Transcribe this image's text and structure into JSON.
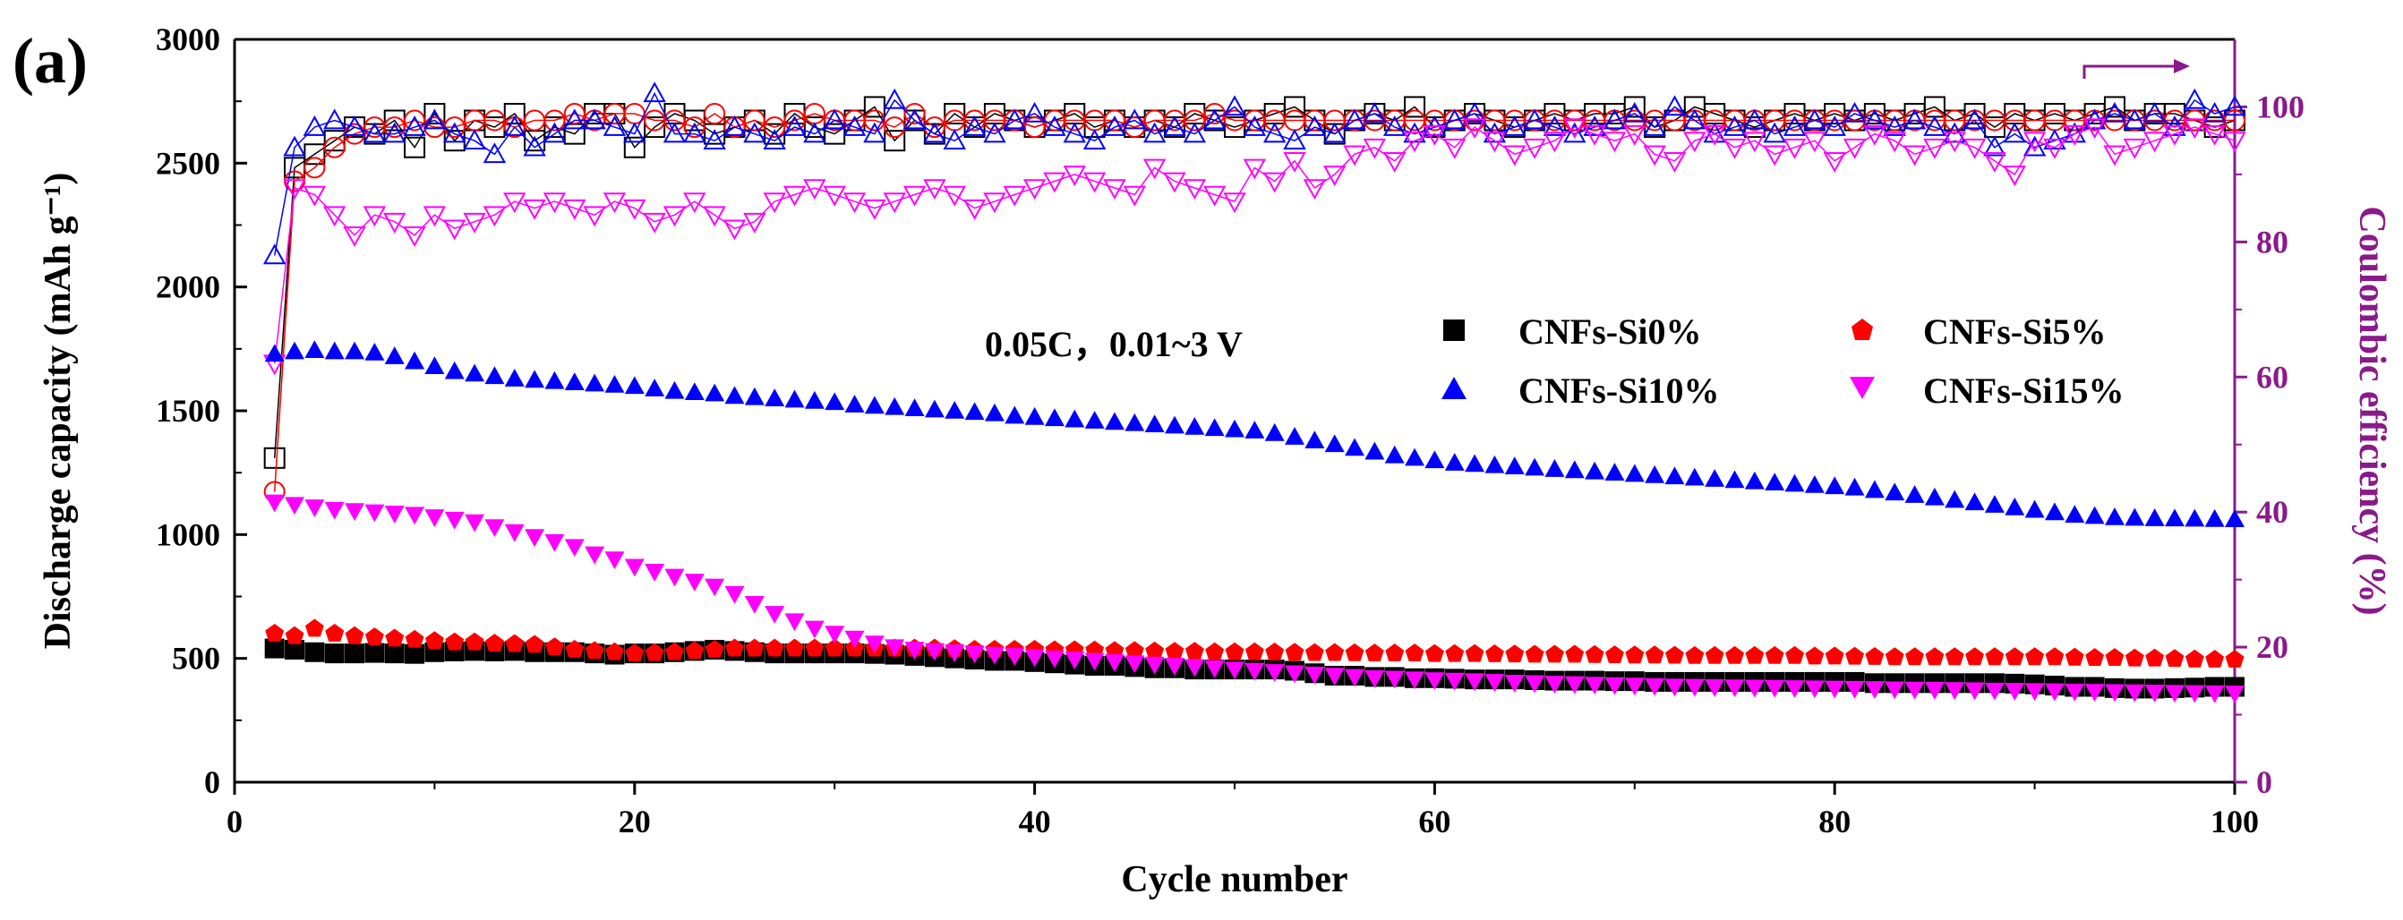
{
  "panel_label": "(a)",
  "annotation": "0.05C，0.01~3 V",
  "colors": {
    "axis": "#000000",
    "right_axis": "#8a1a8a",
    "CNFs-Si0%": "#000000",
    "CNFs-Si5%": "#ff0000",
    "CNFs-Si10%": "#0000ff",
    "CNFs-Si15%": "#ff00ff"
  },
  "chart_data": {
    "type": "scatter",
    "xlabel": "Cycle number",
    "ylabel": "Discharge capacity (mAh g⁻¹)",
    "y2label": "Coulombic efficiency (%)",
    "xlim": [
      0,
      100
    ],
    "ylim": [
      0,
      3000
    ],
    "y2lim": [
      0,
      110
    ],
    "xticks": [
      0,
      20,
      40,
      60,
      80,
      100
    ],
    "yticks": [
      0,
      500,
      1000,
      1500,
      2000,
      2500,
      3000
    ],
    "y2ticks": [
      0,
      20,
      40,
      60,
      80,
      100
    ],
    "grid": false,
    "legend_position": "upper-middle",
    "x": [
      2,
      3,
      4,
      5,
      6,
      7,
      8,
      9,
      10,
      11,
      12,
      13,
      14,
      15,
      16,
      17,
      18,
      19,
      20,
      21,
      22,
      23,
      24,
      25,
      26,
      27,
      28,
      29,
      30,
      31,
      32,
      33,
      34,
      35,
      36,
      37,
      38,
      39,
      40,
      41,
      42,
      43,
      44,
      45,
      46,
      47,
      48,
      49,
      50,
      51,
      52,
      53,
      54,
      55,
      56,
      57,
      58,
      59,
      60,
      61,
      62,
      63,
      64,
      65,
      66,
      67,
      68,
      69,
      70,
      71,
      72,
      73,
      74,
      75,
      76,
      77,
      78,
      79,
      80,
      81,
      82,
      83,
      84,
      85,
      86,
      87,
      88,
      89,
      90,
      91,
      92,
      93,
      94,
      95,
      96,
      97,
      98,
      99,
      100
    ],
    "series": [
      {
        "name": "CNFs-Si0%",
        "marker": "square",
        "axis": "left",
        "values": [
          540,
          535,
          525,
          520,
          520,
          522,
          520,
          518,
          525,
          528,
          530,
          528,
          530,
          525,
          525,
          525,
          520,
          515,
          520,
          520,
          525,
          530,
          535,
          530,
          525,
          520,
          520,
          520,
          520,
          520,
          518,
          515,
          510,
          505,
          500,
          495,
          490,
          490,
          485,
          480,
          475,
          470,
          470,
          465,
          460,
          460,
          455,
          455,
          455,
          455,
          455,
          450,
          440,
          430,
          430,
          425,
          425,
          420,
          420,
          418,
          415,
          415,
          415,
          412,
          410,
          410,
          410,
          408,
          408,
          405,
          405,
          405,
          405,
          405,
          405,
          405,
          405,
          405,
          405,
          405,
          400,
          400,
          400,
          400,
          400,
          400,
          400,
          398,
          395,
          390,
          385,
          385,
          380,
          378,
          378,
          380,
          382,
          385,
          385
        ]
      },
      {
        "name": "CNFs-Si5%",
        "marker": "pentagon",
        "axis": "left",
        "values": [
          600,
          590,
          620,
          600,
          590,
          585,
          580,
          575,
          570,
          565,
          565,
          560,
          558,
          555,
          545,
          535,
          530,
          525,
          520,
          522,
          525,
          530,
          535,
          540,
          540,
          540,
          540,
          540,
          540,
          540,
          540,
          540,
          540,
          540,
          538,
          535,
          535,
          535,
          535,
          533,
          533,
          532,
          530,
          530,
          528,
          527,
          527,
          525,
          525,
          525,
          524,
          523,
          522,
          522,
          521,
          520,
          520,
          520,
          518,
          518,
          518,
          517,
          516,
          515,
          515,
          515,
          514,
          513,
          512,
          512,
          511,
          510,
          510,
          510,
          510,
          510,
          510,
          508,
          508,
          507,
          506,
          505,
          505,
          505,
          505,
          505,
          505,
          505,
          505,
          505,
          503,
          502,
          502,
          500,
          500,
          498,
          496,
          495,
          495
        ]
      },
      {
        "name": "CNFs-Si10%",
        "marker": "triangle-up",
        "axis": "left",
        "values": [
          1730,
          1740,
          1745,
          1740,
          1740,
          1735,
          1720,
          1700,
          1680,
          1660,
          1650,
          1640,
          1630,
          1625,
          1620,
          1615,
          1610,
          1605,
          1600,
          1590,
          1580,
          1575,
          1570,
          1560,
          1555,
          1550,
          1545,
          1540,
          1535,
          1525,
          1520,
          1515,
          1510,
          1505,
          1500,
          1495,
          1490,
          1480,
          1475,
          1470,
          1465,
          1460,
          1455,
          1450,
          1445,
          1440,
          1435,
          1430,
          1425,
          1420,
          1410,
          1395,
          1380,
          1365,
          1350,
          1335,
          1320,
          1310,
          1300,
          1290,
          1285,
          1280,
          1275,
          1270,
          1265,
          1260,
          1255,
          1250,
          1245,
          1240,
          1235,
          1230,
          1225,
          1220,
          1215,
          1210,
          1205,
          1200,
          1195,
          1190,
          1180,
          1170,
          1160,
          1150,
          1140,
          1130,
          1120,
          1110,
          1100,
          1090,
          1080,
          1075,
          1070,
          1068,
          1066,
          1065,
          1064,
          1063,
          1062
        ]
      },
      {
        "name": "CNFs-Si15%",
        "marker": "triangle-down",
        "axis": "left",
        "values": [
          1130,
          1120,
          1110,
          1100,
          1095,
          1090,
          1085,
          1080,
          1070,
          1060,
          1050,
          1030,
          1010,
          990,
          970,
          950,
          920,
          900,
          870,
          850,
          830,
          810,
          790,
          760,
          720,
          680,
          650,
          620,
          600,
          580,
          560,
          545,
          535,
          530,
          525,
          520,
          515,
          510,
          505,
          500,
          495,
          490,
          485,
          480,
          475,
          470,
          465,
          460,
          455,
          450,
          445,
          440,
          435,
          430,
          425,
          420,
          418,
          415,
          412,
          410,
          408,
          405,
          402,
          400,
          398,
          396,
          394,
          392,
          390,
          388,
          386,
          385,
          384,
          383,
          382,
          381,
          380,
          379,
          378,
          377,
          376,
          375,
          374,
          373,
          372,
          371,
          370,
          369,
          368,
          367,
          366,
          365,
          364,
          363,
          362,
          361,
          360,
          359,
          358
        ]
      },
      {
        "name": "CNFs-Si0% CE",
        "marker": "open-square",
        "axis": "right",
        "values": [
          48,
          91,
          93,
          95,
          97,
          96,
          98,
          94,
          99,
          95,
          98,
          97,
          99,
          95,
          97,
          96,
          99,
          99,
          94,
          97,
          99,
          98,
          96,
          97,
          98,
          96,
          99,
          97,
          96,
          98,
          100,
          95,
          98,
          96,
          99,
          97,
          99,
          98,
          97,
          98,
          99,
          97,
          98,
          97,
          98,
          97,
          99,
          98,
          97,
          98,
          99,
          100,
          98,
          96,
          98,
          99,
          98,
          100,
          97,
          98,
          99,
          98,
          97,
          98,
          99,
          98,
          99,
          99,
          100,
          97,
          98,
          100,
          99,
          98,
          97,
          98,
          99,
          98,
          99,
          98,
          99,
          98,
          99,
          100,
          98,
          99,
          97,
          99,
          98,
          99,
          98,
          99,
          100,
          98,
          99,
          99,
          98,
          97,
          98
        ]
      },
      {
        "name": "CNFs-Si5% CE",
        "marker": "open-circle",
        "axis": "right",
        "values": [
          43,
          89,
          91,
          94,
          96,
          97,
          97,
          98,
          97,
          97,
          98,
          98,
          97,
          98,
          98,
          99,
          98,
          99,
          99,
          98,
          98,
          97,
          99,
          97,
          98,
          97,
          98,
          99,
          98,
          98,
          98,
          97,
          99,
          97,
          98,
          98,
          98,
          98,
          97,
          98,
          98,
          98,
          98,
          97,
          98,
          98,
          98,
          99,
          98,
          98,
          98,
          98,
          98,
          98,
          98,
          98,
          98,
          98,
          98,
          98,
          98,
          98,
          98,
          98,
          98,
          98,
          98,
          98,
          98,
          98,
          98,
          98,
          98,
          98,
          98,
          98,
          98,
          98,
          98,
          98,
          98,
          98,
          98,
          98,
          98,
          98,
          98,
          98,
          98,
          98,
          98,
          98,
          98,
          98,
          98,
          98,
          98,
          98,
          98
        ]
      },
      {
        "name": "CNFs-Si10% CE",
        "marker": "open-triangle-up",
        "axis": "right",
        "values": [
          78,
          94,
          97,
          98,
          97,
          96,
          96,
          97,
          98,
          96,
          95,
          93,
          97,
          94,
          96,
          98,
          98,
          97,
          96,
          102,
          96,
          96,
          95,
          97,
          96,
          95,
          97,
          96,
          98,
          97,
          96,
          101,
          98,
          96,
          95,
          97,
          96,
          98,
          99,
          97,
          96,
          95,
          97,
          98,
          96,
          97,
          96,
          98,
          100,
          97,
          96,
          95,
          97,
          96,
          98,
          99,
          97,
          96,
          97,
          98,
          99,
          96,
          97,
          98,
          97,
          96,
          97,
          98,
          99,
          97,
          100,
          98,
          96,
          97,
          98,
          96,
          97,
          98,
          97,
          99,
          98,
          97,
          98,
          97,
          96,
          98,
          94,
          96,
          94,
          95,
          96,
          98,
          99,
          98,
          99,
          97,
          101,
          99,
          100
        ]
      },
      {
        "name": "CNFs-Si15% CE",
        "marker": "open-triangle-down",
        "axis": "right",
        "values": [
          62,
          88,
          87,
          84,
          81,
          84,
          83,
          81,
          84,
          82,
          83,
          84,
          86,
          85,
          86,
          85,
          84,
          86,
          85,
          83,
          84,
          86,
          84,
          82,
          83,
          86,
          87,
          88,
          87,
          86,
          85,
          86,
          87,
          88,
          87,
          85,
          86,
          87,
          88,
          89,
          90,
          89,
          88,
          87,
          91,
          89,
          88,
          87,
          86,
          91,
          89,
          92,
          88,
          90,
          93,
          94,
          92,
          95,
          96,
          94,
          97,
          95,
          93,
          94,
          95,
          97,
          96,
          95,
          96,
          93,
          92,
          95,
          96,
          94,
          95,
          93,
          94,
          95,
          92,
          94,
          96,
          95,
          93,
          94,
          95,
          94,
          92,
          90,
          95,
          94,
          96,
          97,
          93,
          94,
          95,
          96,
          97,
          96,
          95
        ]
      }
    ]
  }
}
